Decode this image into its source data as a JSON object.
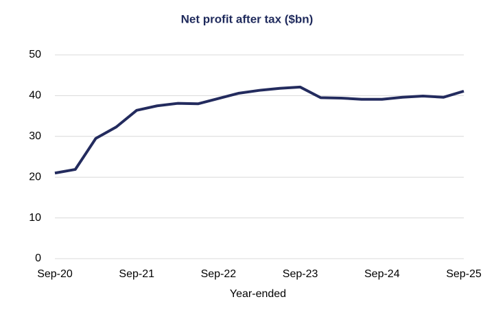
{
  "chart_data": {
    "type": "line",
    "title": "Net profit after tax ($bn)",
    "x_label": "Year-ended",
    "categories": [
      "Sep-20",
      null,
      null,
      null,
      "Sep-21",
      null,
      null,
      null,
      "Sep-22",
      null,
      null,
      null,
      "Sep-23",
      null,
      null,
      null,
      "Sep-24",
      null,
      null,
      null,
      "Sep-25"
    ],
    "values": [
      21.0,
      21.9,
      29.5,
      32.3,
      36.4,
      37.5,
      38.1,
      38.0,
      39.3,
      40.6,
      41.3,
      41.8,
      42.1,
      39.5,
      39.4,
      39.1,
      39.1,
      39.6,
      39.9,
      39.6,
      41.1
    ],
    "color": "#232b5e",
    "ylim": [
      0,
      50
    ],
    "yticks": [
      0,
      10,
      20,
      30,
      40,
      50
    ],
    "grid": true
  }
}
